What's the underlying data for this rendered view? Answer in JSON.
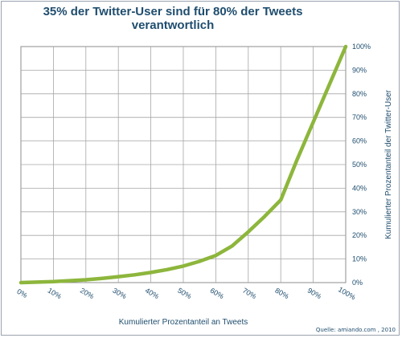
{
  "chart_data": {
    "type": "line",
    "title_line1": "35% der Twitter-User sind für 80% der Tweets",
    "title_line2": "verantwortlich",
    "xlabel": "Kumulierter Prozentanteil an Tweets",
    "ylabel": "Kumulierter Prozentanteil der Twitter-User",
    "x_ticks": [
      "0%",
      "10%",
      "20%",
      "30%",
      "40%",
      "50%",
      "60%",
      "70%",
      "80%",
      "90%",
      "100%"
    ],
    "y_ticks": [
      "0%",
      "10%",
      "20%",
      "30%",
      "40%",
      "50%",
      "60%",
      "70%",
      "80%",
      "90%",
      "100%"
    ],
    "xlim": [
      0,
      100
    ],
    "ylim": [
      0,
      100
    ],
    "grid": true,
    "series": [
      {
        "color": "#8db63c",
        "x": [
          0,
          5,
          10,
          15,
          20,
          25,
          30,
          35,
          40,
          45,
          50,
          55,
          60,
          65,
          70,
          75,
          80,
          85,
          90,
          95,
          100
        ],
        "y": [
          0,
          0.2,
          0.4,
          0.8,
          1.2,
          1.8,
          2.5,
          3.3,
          4.3,
          5.5,
          7,
          9,
          11.5,
          15.5,
          21.5,
          28,
          35,
          52,
          68,
          84,
          100
        ]
      }
    ],
    "source": "Quelle: amiando.com , 2010"
  }
}
